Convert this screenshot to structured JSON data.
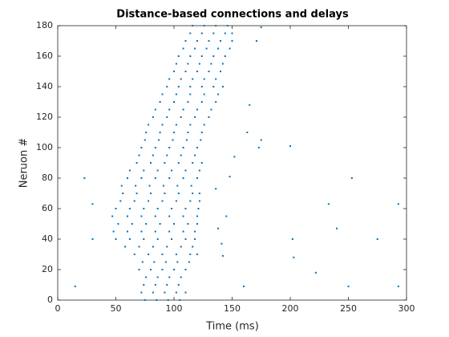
{
  "chart_data": {
    "type": "scatter",
    "title": "Distance-based connections and delays",
    "x_label": "Time (ms)",
    "y_label": "Neruon #",
    "color": "#0072bd",
    "xlim": [
      0,
      300
    ],
    "xticks": [
      0,
      50,
      100,
      150,
      200,
      250,
      300
    ],
    "ylim": [
      0,
      180
    ],
    "yticks": [
      0,
      20,
      40,
      60,
      80,
      100,
      120,
      140,
      160,
      180
    ],
    "x": [
      75,
      85,
      95,
      105,
      72,
      82,
      92,
      102,
      110,
      74,
      84,
      94,
      104,
      76,
      86,
      96,
      106,
      70,
      80,
      90,
      100,
      110,
      73,
      83,
      93,
      103,
      113,
      66,
      78,
      90,
      102,
      114,
      58,
      70,
      82,
      94,
      106,
      116,
      50,
      62,
      74,
      86,
      98,
      110,
      118,
      48,
      60,
      72,
      84,
      96,
      108,
      118,
      52,
      64,
      76,
      88,
      100,
      112,
      120,
      47,
      60,
      72,
      84,
      96,
      108,
      120,
      50,
      62,
      74,
      86,
      98,
      110,
      121,
      54,
      66,
      78,
      90,
      102,
      114,
      122,
      56,
      68,
      80,
      92,
      104,
      116,
      122,
      55,
      67,
      79,
      91,
      103,
      115,
      60,
      72,
      84,
      96,
      108,
      120,
      62,
      74,
      86,
      98,
      110,
      122,
      68,
      80,
      92,
      104,
      116,
      124,
      70,
      82,
      94,
      106,
      118,
      72,
      84,
      96,
      108,
      120,
      75,
      87,
      99,
      111,
      123,
      76,
      88,
      100,
      112,
      124,
      78,
      90,
      102,
      114,
      126,
      82,
      94,
      106,
      118,
      130,
      84,
      96,
      108,
      120,
      132,
      88,
      100,
      112,
      124,
      136,
      90,
      102,
      114,
      126,
      138,
      94,
      104,
      114,
      124,
      134,
      142,
      96,
      106,
      116,
      126,
      136,
      100,
      110,
      120,
      130,
      140,
      102,
      112,
      122,
      132,
      142,
      104,
      114,
      124,
      134,
      144,
      108,
      118,
      128,
      138,
      148,
      110,
      120,
      130,
      140,
      150,
      114,
      124,
      134,
      144,
      150,
      116,
      126,
      136,
      146,
      15,
      23,
      30,
      30,
      160,
      173,
      200,
      202,
      233,
      240,
      253,
      275,
      293,
      293,
      203,
      222,
      250,
      175,
      175,
      171,
      165,
      163,
      152,
      148,
      136,
      145,
      138,
      141,
      142,
      120
    ],
    "y": [
      0,
      0,
      0,
      0,
      5,
      5,
      5,
      5,
      5,
      10,
      10,
      10,
      10,
      15,
      15,
      15,
      15,
      20,
      20,
      20,
      20,
      20,
      25,
      25,
      25,
      25,
      25,
      30,
      30,
      30,
      30,
      30,
      35,
      35,
      35,
      35,
      35,
      35,
      40,
      40,
      40,
      40,
      40,
      40,
      40,
      45,
      45,
      45,
      45,
      45,
      45,
      45,
      50,
      50,
      50,
      50,
      50,
      50,
      50,
      55,
      55,
      55,
      55,
      55,
      55,
      55,
      60,
      60,
      60,
      60,
      60,
      60,
      60,
      65,
      65,
      65,
      65,
      65,
      65,
      65,
      70,
      70,
      70,
      70,
      70,
      70,
      70,
      75,
      75,
      75,
      75,
      75,
      75,
      80,
      80,
      80,
      80,
      80,
      80,
      85,
      85,
      85,
      85,
      85,
      85,
      90,
      90,
      90,
      90,
      90,
      90,
      95,
      95,
      95,
      95,
      95,
      100,
      100,
      100,
      100,
      100,
      105,
      105,
      105,
      105,
      105,
      110,
      110,
      110,
      110,
      110,
      115,
      115,
      115,
      115,
      115,
      120,
      120,
      120,
      120,
      120,
      125,
      125,
      125,
      125,
      125,
      130,
      130,
      130,
      130,
      130,
      135,
      135,
      135,
      135,
      135,
      140,
      140,
      140,
      140,
      140,
      140,
      145,
      145,
      145,
      145,
      145,
      150,
      150,
      150,
      150,
      150,
      155,
      155,
      155,
      155,
      155,
      160,
      160,
      160,
      160,
      160,
      165,
      165,
      165,
      165,
      165,
      170,
      170,
      170,
      170,
      170,
      175,
      175,
      175,
      175,
      175,
      180,
      180,
      180,
      180,
      9,
      80,
      63,
      40,
      9,
      100,
      101,
      40,
      63,
      47,
      80,
      40,
      63,
      9,
      28,
      18,
      9,
      179,
      105,
      170,
      128,
      110,
      94,
      81,
      73,
      55,
      47,
      37,
      29,
      30
    ]
  }
}
